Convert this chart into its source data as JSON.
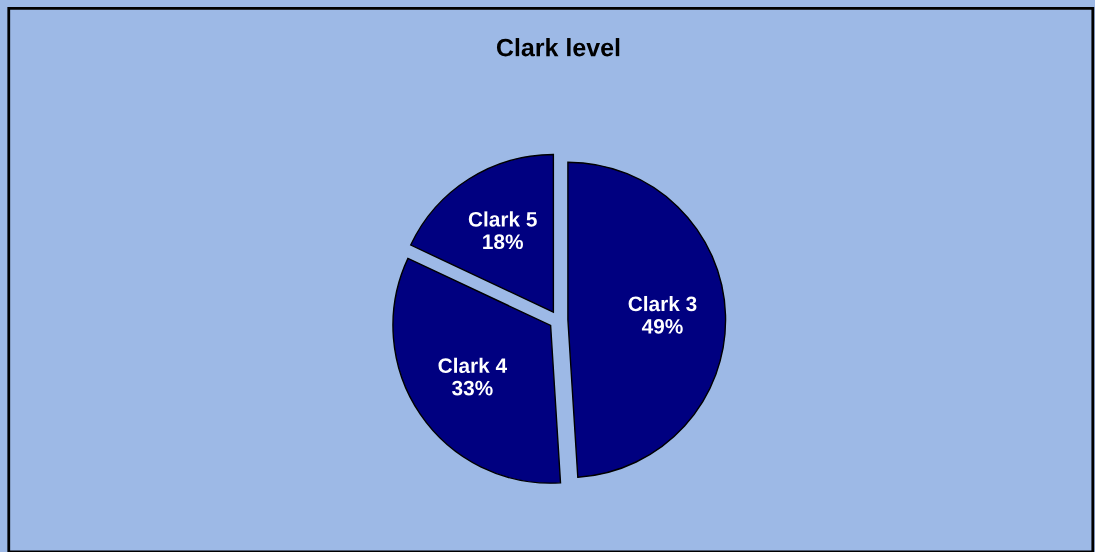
{
  "chart_data": {
    "type": "pie",
    "title": "Clark level",
    "categories": [
      "Clark 3",
      "Clark 4",
      "Clark 5"
    ],
    "values": [
      49,
      33,
      18
    ],
    "colors": [
      "#000080",
      "#000080",
      "#000080"
    ],
    "value_labels": [
      "49%",
      "33%",
      "18%"
    ],
    "legend": false
  }
}
